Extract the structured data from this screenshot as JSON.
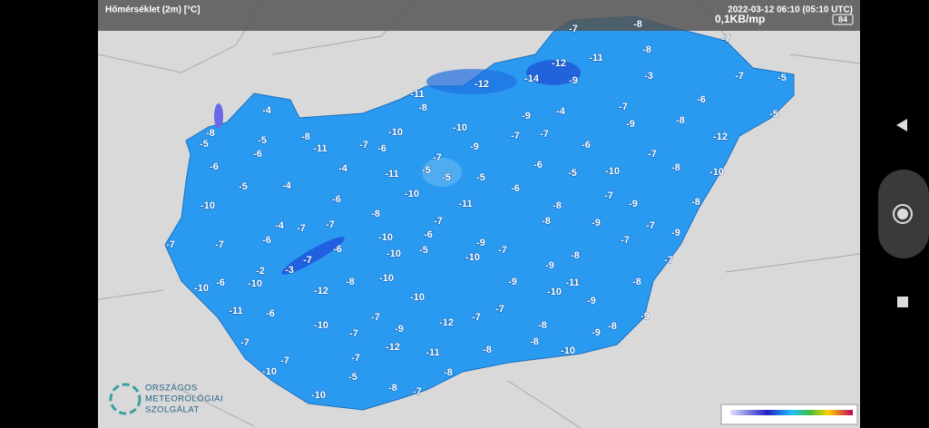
{
  "header": {
    "title": "Hőmérséklet (2m) [°C]",
    "timestamp": "2022-03-12 06:10 (05:10 UTC)",
    "network_speed": "0,1KB/mp",
    "battery": "84"
  },
  "logo": {
    "line1": "ORSZÁGOS",
    "line2": "METEOROLÓGIAI",
    "line3": "SZOLGÁLAT"
  },
  "temperatures": [
    -8,
    -7,
    -7,
    -11,
    -8,
    -12,
    -14,
    -9,
    -3,
    -7,
    -5,
    -12,
    -11,
    -6,
    -7,
    -8,
    -4,
    -9,
    -9,
    -8,
    -5,
    -4,
    -8,
    -10,
    -10,
    -7,
    -7,
    -12,
    -5,
    -5,
    -8,
    -11,
    -7,
    -6,
    -9,
    -6,
    -7,
    -6,
    -7,
    -6,
    -4,
    -11,
    -5,
    -5,
    -5,
    -6,
    -5,
    -10,
    -8,
    -10,
    -5,
    -4,
    -10,
    -6,
    -8,
    -7,
    -9,
    -8,
    -10,
    -6,
    -11,
    -8,
    -7,
    -8,
    -9,
    -7,
    -9,
    -4,
    -7,
    -7,
    -6,
    -6,
    -10,
    -6,
    -5,
    -9,
    -7,
    -7,
    -7,
    -7,
    -10,
    -10,
    -8,
    -9,
    -7,
    -2,
    -3,
    -7,
    -10,
    -6,
    -10,
    -12,
    -8,
    -10,
    -9,
    -11,
    -10,
    -8,
    -10,
    -7,
    -9,
    -11,
    -6,
    -7,
    -10,
    -12,
    -7,
    -9,
    -8,
    -8,
    -9,
    -9,
    -7,
    -7,
    -12,
    -11,
    -8,
    -8,
    -10,
    -7,
    -7,
    -5,
    -10,
    -8,
    -8,
    -10,
    -7
  ]
}
